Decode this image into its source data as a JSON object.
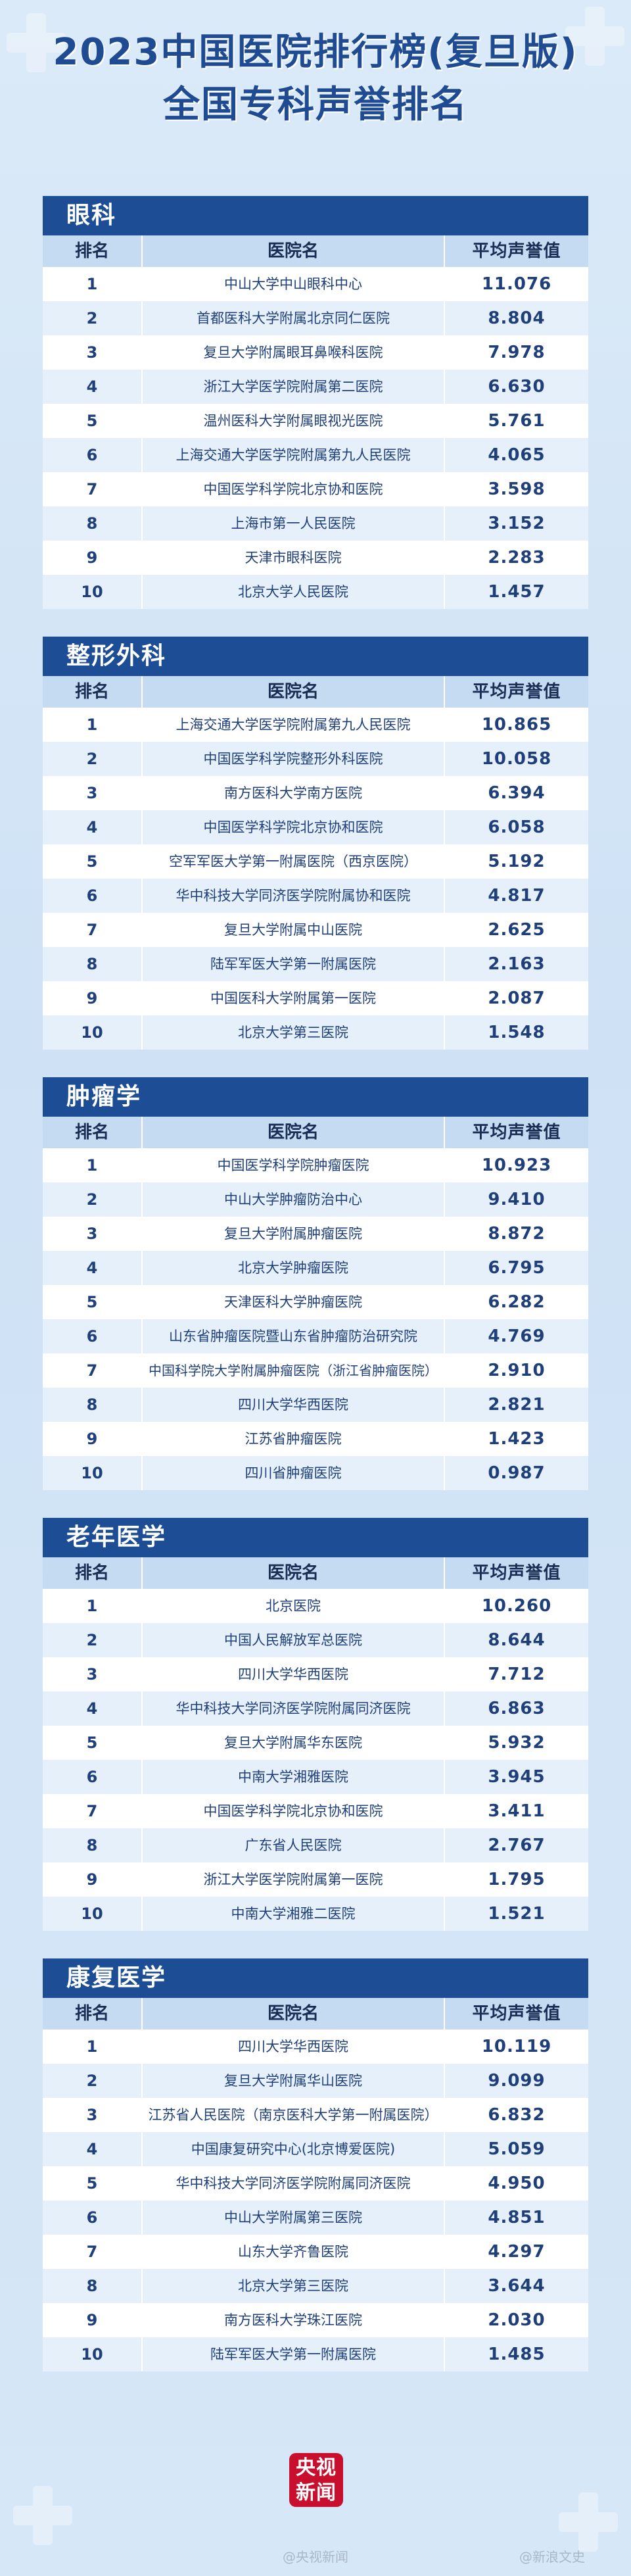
{
  "header": {
    "title_line1": "2023中国医院排行榜(复旦版)",
    "title_line2": "全国专科声誉排名"
  },
  "columns": {
    "rank": "排名",
    "hospital": "医院名",
    "score": "平均声誉值"
  },
  "sections": [
    {
      "title": "眼科",
      "rows": [
        {
          "rank": "1",
          "name": "中山大学中山眼科中心",
          "score": "11.076"
        },
        {
          "rank": "2",
          "name": "首都医科大学附属北京同仁医院",
          "score": "8.804"
        },
        {
          "rank": "3",
          "name": "复旦大学附属眼耳鼻喉科医院",
          "score": "7.978"
        },
        {
          "rank": "4",
          "name": "浙江大学医学院附属第二医院",
          "score": "6.630"
        },
        {
          "rank": "5",
          "name": "温州医科大学附属眼视光医院",
          "score": "5.761"
        },
        {
          "rank": "6",
          "name": "上海交通大学医学院附属第九人民医院",
          "score": "4.065"
        },
        {
          "rank": "7",
          "name": "中国医学科学院北京协和医院",
          "score": "3.598"
        },
        {
          "rank": "8",
          "name": "上海市第一人民医院",
          "score": "3.152"
        },
        {
          "rank": "9",
          "name": "天津市眼科医院",
          "score": "2.283"
        },
        {
          "rank": "10",
          "name": "北京大学人民医院",
          "score": "1.457"
        }
      ]
    },
    {
      "title": "整形外科",
      "rows": [
        {
          "rank": "1",
          "name": "上海交通大学医学院附属第九人民医院",
          "score": "10.865"
        },
        {
          "rank": "2",
          "name": "中国医学科学院整形外科医院",
          "score": "10.058"
        },
        {
          "rank": "3",
          "name": "南方医科大学南方医院",
          "score": "6.394"
        },
        {
          "rank": "4",
          "name": "中国医学科学院北京协和医院",
          "score": "6.058"
        },
        {
          "rank": "5",
          "name": "空军军医大学第一附属医院（西京医院）",
          "score": "5.192"
        },
        {
          "rank": "6",
          "name": "华中科技大学同济医学院附属协和医院",
          "score": "4.817"
        },
        {
          "rank": "7",
          "name": "复旦大学附属中山医院",
          "score": "2.625"
        },
        {
          "rank": "8",
          "name": "陆军军医大学第一附属医院",
          "score": "2.163"
        },
        {
          "rank": "9",
          "name": "中国医科大学附属第一医院",
          "score": "2.087"
        },
        {
          "rank": "10",
          "name": "北京大学第三医院",
          "score": "1.548"
        }
      ]
    },
    {
      "title": "肿瘤学",
      "rows": [
        {
          "rank": "1",
          "name": "中国医学科学院肿瘤医院",
          "score": "10.923"
        },
        {
          "rank": "2",
          "name": "中山大学肿瘤防治中心",
          "score": "9.410"
        },
        {
          "rank": "3",
          "name": "复旦大学附属肿瘤医院",
          "score": "8.872"
        },
        {
          "rank": "4",
          "name": "北京大学肿瘤医院",
          "score": "6.795"
        },
        {
          "rank": "5",
          "name": "天津医科大学肿瘤医院",
          "score": "6.282"
        },
        {
          "rank": "6",
          "name": "山东省肿瘤医院暨山东省肿瘤防治研究院",
          "score": "4.769"
        },
        {
          "rank": "7",
          "name": "中国科学院大学附属肿瘤医院（浙江省肿瘤医院）",
          "score": "2.910"
        },
        {
          "rank": "8",
          "name": "四川大学华西医院",
          "score": "2.821"
        },
        {
          "rank": "9",
          "name": "江苏省肿瘤医院",
          "score": "1.423"
        },
        {
          "rank": "10",
          "name": "四川省肿瘤医院",
          "score": "0.987"
        }
      ]
    },
    {
      "title": "老年医学",
      "rows": [
        {
          "rank": "1",
          "name": "北京医院",
          "score": "10.260"
        },
        {
          "rank": "2",
          "name": "中国人民解放军总医院",
          "score": "8.644"
        },
        {
          "rank": "3",
          "name": "四川大学华西医院",
          "score": "7.712"
        },
        {
          "rank": "4",
          "name": "华中科技大学同济医学院附属同济医院",
          "score": "6.863"
        },
        {
          "rank": "5",
          "name": "复旦大学附属华东医院",
          "score": "5.932"
        },
        {
          "rank": "6",
          "name": "中南大学湘雅医院",
          "score": "3.945"
        },
        {
          "rank": "7",
          "name": "中国医学科学院北京协和医院",
          "score": "3.411"
        },
        {
          "rank": "8",
          "name": "广东省人民医院",
          "score": "2.767"
        },
        {
          "rank": "9",
          "name": "浙江大学医学院附属第一医院",
          "score": "1.795"
        },
        {
          "rank": "10",
          "name": "中南大学湘雅二医院",
          "score": "1.521"
        }
      ]
    },
    {
      "title": "康复医学",
      "rows": [
        {
          "rank": "1",
          "name": "四川大学华西医院",
          "score": "10.119"
        },
        {
          "rank": "2",
          "name": "复旦大学附属华山医院",
          "score": "9.099"
        },
        {
          "rank": "3",
          "name": "江苏省人民医院（南京医科大学第一附属医院）",
          "score": "6.832"
        },
        {
          "rank": "4",
          "name": "中国康复研究中心(北京博爱医院)",
          "score": "5.059"
        },
        {
          "rank": "5",
          "name": "华中科技大学同济医学院附属同济医院",
          "score": "4.950"
        },
        {
          "rank": "6",
          "name": "中山大学附属第三医院",
          "score": "4.851"
        },
        {
          "rank": "7",
          "name": "山东大学齐鲁医院",
          "score": "4.297"
        },
        {
          "rank": "8",
          "name": "北京大学第三医院",
          "score": "3.644"
        },
        {
          "rank": "9",
          "name": "南方医科大学珠江医院",
          "score": "2.030"
        },
        {
          "rank": "10",
          "name": "陆军军医大学第一附属医院",
          "score": "1.485"
        }
      ]
    }
  ],
  "logo": {
    "line1": "央视",
    "line2": "新闻"
  },
  "watermarks": {
    "left": "@央视新闻",
    "right": "@新浪文史"
  }
}
